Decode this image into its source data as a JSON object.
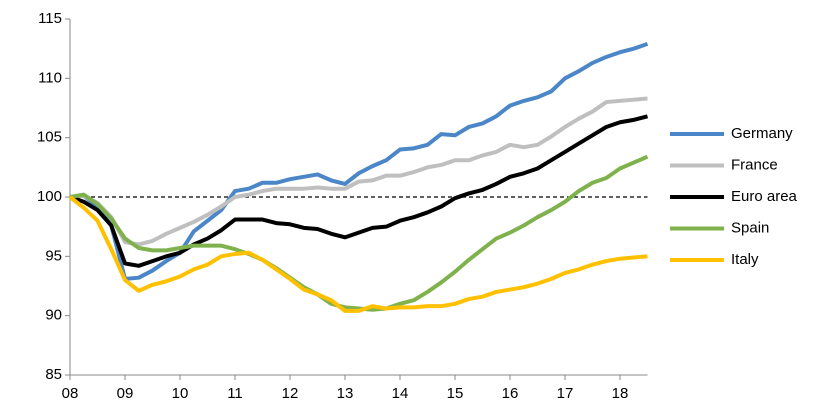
{
  "chart_data": {
    "type": "line",
    "x": [
      2008,
      2008.25,
      2008.5,
      2008.75,
      2009,
      2009.25,
      2009.5,
      2009.75,
      2010,
      2010.25,
      2010.5,
      2010.75,
      2011,
      2011.25,
      2011.5,
      2011.75,
      2012,
      2012.25,
      2012.5,
      2012.75,
      2013,
      2013.25,
      2013.5,
      2013.75,
      2014,
      2014.25,
      2014.5,
      2014.75,
      2015,
      2015.25,
      2015.5,
      2015.75,
      2016,
      2016.25,
      2016.5,
      2016.75,
      2017,
      2017.25,
      2017.5,
      2017.75,
      2018,
      2018.25,
      2018.5
    ],
    "series": [
      {
        "name": "Germany",
        "color": "#4a86c8",
        "values": [
          100,
          100.1,
          99.2,
          97.6,
          93.1,
          93.2,
          93.8,
          94.6,
          95.3,
          97.1,
          98.0,
          98.9,
          100.5,
          100.7,
          101.2,
          101.2,
          101.5,
          101.7,
          101.9,
          101.4,
          101.1,
          102.0,
          102.6,
          103.1,
          104.0,
          104.1,
          104.4,
          105.3,
          105.2,
          105.9,
          106.2,
          106.8,
          107.7,
          108.1,
          108.4,
          108.9,
          110.0,
          110.6,
          111.3,
          111.8,
          112.2,
          112.5,
          112.9
        ]
      },
      {
        "name": "France",
        "color": "#bfbfbf",
        "values": [
          100,
          100.1,
          99.5,
          98.3,
          96.2,
          96.0,
          96.3,
          96.9,
          97.4,
          97.9,
          98.5,
          99.2,
          100.0,
          100.2,
          100.5,
          100.7,
          100.7,
          100.7,
          100.8,
          100.7,
          100.7,
          101.3,
          101.4,
          101.8,
          101.8,
          102.1,
          102.5,
          102.7,
          103.1,
          103.1,
          103.5,
          103.8,
          104.4,
          104.2,
          104.4,
          105.1,
          105.9,
          106.6,
          107.2,
          108.0,
          108.1,
          108.2,
          108.3
        ]
      },
      {
        "name": "Euro area",
        "color": "#000000",
        "values": [
          100,
          99.6,
          98.9,
          97.6,
          94.4,
          94.2,
          94.6,
          95.0,
          95.3,
          96.0,
          96.5,
          97.2,
          98.1,
          98.1,
          98.1,
          97.8,
          97.7,
          97.4,
          97.3,
          96.9,
          96.6,
          97.0,
          97.4,
          97.5,
          98.0,
          98.3,
          98.7,
          99.2,
          99.9,
          100.3,
          100.6,
          101.1,
          101.7,
          102.0,
          102.4,
          103.1,
          103.8,
          104.5,
          105.2,
          105.9,
          106.3,
          106.5,
          106.8
        ]
      },
      {
        "name": "Spain",
        "color": "#7fb24d",
        "values": [
          100,
          100.2,
          99.4,
          98.2,
          96.5,
          95.7,
          95.5,
          95.5,
          95.7,
          95.9,
          95.9,
          95.9,
          95.6,
          95.2,
          94.7,
          94.0,
          93.2,
          92.4,
          91.8,
          91.0,
          90.7,
          90.6,
          90.5,
          90.6,
          91.0,
          91.3,
          92.0,
          92.8,
          93.7,
          94.7,
          95.6,
          96.5,
          97.0,
          97.6,
          98.3,
          98.9,
          99.6,
          100.5,
          101.2,
          101.6,
          102.4,
          102.9,
          103.4
        ]
      },
      {
        "name": "Italy",
        "color": "#ffc000",
        "values": [
          100,
          99.1,
          98.0,
          95.6,
          93.0,
          92.1,
          92.6,
          92.9,
          93.3,
          93.9,
          94.3,
          95.0,
          95.2,
          95.3,
          94.7,
          93.9,
          93.1,
          92.2,
          91.8,
          91.3,
          90.4,
          90.4,
          90.8,
          90.6,
          90.7,
          90.7,
          90.8,
          90.8,
          91.0,
          91.4,
          91.6,
          92.0,
          92.2,
          92.4,
          92.7,
          93.1,
          93.6,
          93.9,
          94.3,
          94.6,
          94.8,
          94.9,
          95.0
        ]
      }
    ],
    "xlim": [
      2008,
      2018.5
    ],
    "xticks": [
      {
        "value": 2008,
        "label": "08"
      },
      {
        "value": 2009,
        "label": "09"
      },
      {
        "value": 2010,
        "label": "10"
      },
      {
        "value": 2011,
        "label": "11"
      },
      {
        "value": 2012,
        "label": "12"
      },
      {
        "value": 2013,
        "label": "13"
      },
      {
        "value": 2014,
        "label": "14"
      },
      {
        "value": 2015,
        "label": "15"
      },
      {
        "value": 2016,
        "label": "16"
      },
      {
        "value": 2017,
        "label": "17"
      },
      {
        "value": 2018,
        "label": "18"
      }
    ],
    "ylim": [
      85,
      115
    ],
    "yticks": [
      85,
      90,
      95,
      100,
      105,
      110,
      115
    ],
    "reference_line": 100,
    "legend": "right"
  }
}
